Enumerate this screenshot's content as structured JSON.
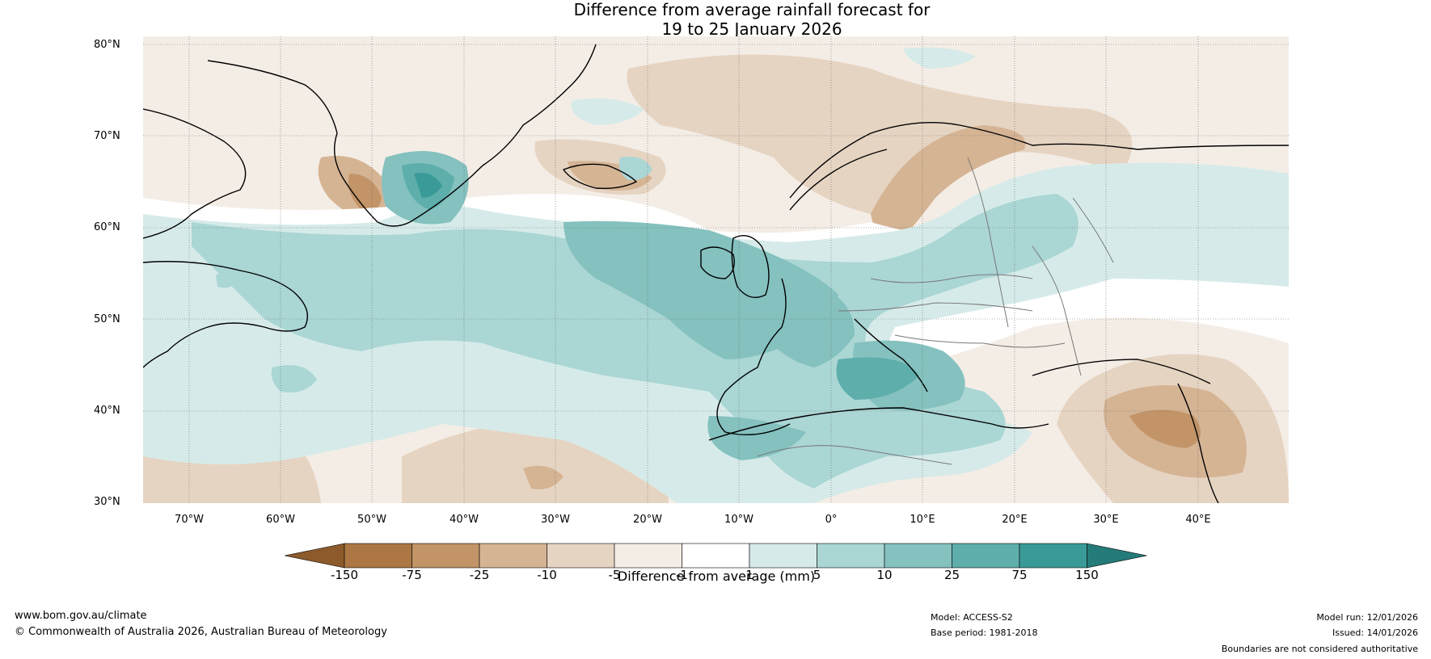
{
  "title": {
    "line1": "Difference from average rainfall forecast for",
    "line2": "19 to 25 January 2026"
  },
  "axes": {
    "lat_labels": [
      "80°N",
      "70°N",
      "60°N",
      "50°N",
      "40°N",
      "30°N"
    ],
    "lon_labels": [
      "70°W",
      "60°W",
      "50°W",
      "40°W",
      "30°W",
      "20°W",
      "10°W",
      "0°",
      "10°E",
      "20°E",
      "30°E",
      "40°E"
    ]
  },
  "colorbar": {
    "ticks": [
      "-150",
      "-75",
      "-25",
      "-10",
      "-5",
      "-1",
      "1",
      "5",
      "10",
      "25",
      "75",
      "150"
    ],
    "colors": [
      "#8c5a2b",
      "#ad7744",
      "#c29468",
      "#d5b494",
      "#e6d4c2",
      "#f4ede6",
      "#ffffff",
      "#d6ebe9",
      "#aad6d4",
      "#84c1bf",
      "#5eaeac",
      "#3a9a98",
      "#247b79"
    ],
    "label": "Difference from average (mm)"
  },
  "footer": {
    "website": "www.bom.gov.au/climate",
    "copyright": "© Commonwealth of Australia 2026, Australian Bureau of Meteorology",
    "model": "Model: ACCESS-S2",
    "base_period": "Base period: 1981-2018",
    "model_run": "Model run: 12/01/2026",
    "issued": "Issued: 14/01/2026",
    "disclaimer": "Boundaries are not considered authoritative"
  }
}
